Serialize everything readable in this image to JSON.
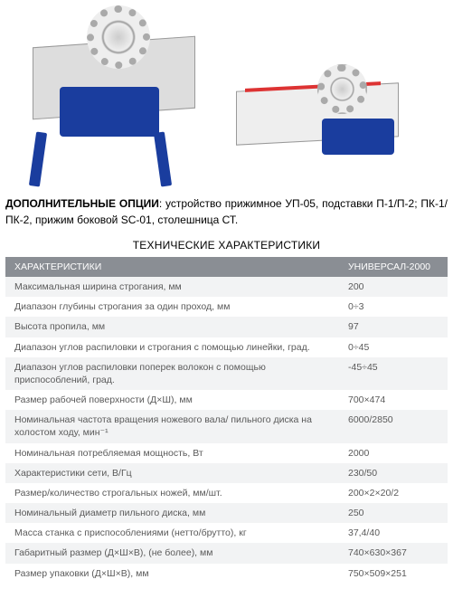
{
  "options": {
    "label": "ДОПОЛНИТЕЛЬНЫЕ ОПЦИИ",
    "text": ": устройство прижимное УП-05, подставки П-1/П-2; ПК-1/ПК-2, прижим боковой SC-01, столешница СТ."
  },
  "spec_title": "ТЕХНИЧЕСКИЕ ХАРАКТЕРИСТИКИ",
  "table": {
    "header_col1": "ХАРАКТЕРИСТИКИ",
    "header_col2": "УНИВЕРСАЛ-2000",
    "header_bg": "#8a8e94",
    "header_fg": "#ffffff",
    "row_odd_bg": "#f2f3f4",
    "row_even_bg": "#ffffff",
    "cell_fg": "#5a5a5a",
    "rows": [
      {
        "label": "Максимальная ширина строгания, мм",
        "value": "200"
      },
      {
        "label": "Диапазон глубины строгания за один проход, мм",
        "value": "0÷3"
      },
      {
        "label": "Высота пропила, мм",
        "value": "97"
      },
      {
        "label": "Диапазон углов распиловки и строгания с помощью линейки, град.",
        "value": "0÷45"
      },
      {
        "label": "Диапазон углов распиловки поперек волокон с помощью приспособлений, град.",
        "value": "-45÷45"
      },
      {
        "label": "Размер рабочей поверхности (Д×Ш), мм",
        "value": "700×474"
      },
      {
        "label": "Номинальная частота вращения ножевого вала/ пильного диска на холостом ходу, мин⁻¹",
        "value": "6000/2850"
      },
      {
        "label": "Номинальная потребляемая мощность, Вт",
        "value": "2000"
      },
      {
        "label": "Характеристики сети, В/Гц",
        "value": "230/50"
      },
      {
        "label": "Размер/количество строгальных ножей, мм/шт.",
        "value": "200×2×20/2"
      },
      {
        "label": "Номинальный диаметр пильного диска, мм",
        "value": "250"
      },
      {
        "label": "Масса станка с приспособлениями (нетто/брутто), кг",
        "value": "37,4/40"
      },
      {
        "label": "Габаритный размер (Д×Ш×В), (не более), мм",
        "value": "740×630×367"
      },
      {
        "label": "Размер упаковки (Д×Ш×В), мм",
        "value": "750×509×251"
      }
    ]
  },
  "images": {
    "blue_color": "#1a3d9e",
    "table_color": "#e8e8e8"
  }
}
